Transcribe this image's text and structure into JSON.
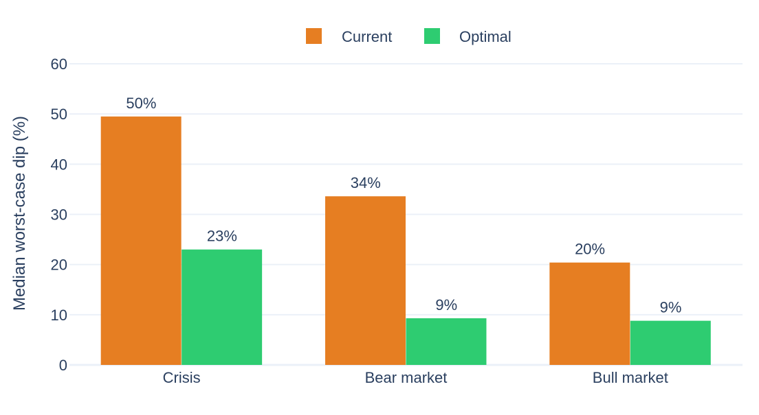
{
  "chart_data": {
    "type": "bar",
    "title": "",
    "xlabel": "",
    "ylabel": "Median worst-case dip (%)",
    "categories": [
      "Crisis",
      "Bear market",
      "Bull market"
    ],
    "series": [
      {
        "name": "Current",
        "color": "#e67e22",
        "values": [
          49.5,
          33.6,
          20.4
        ],
        "labels": [
          "50%",
          "34%",
          "20%"
        ]
      },
      {
        "name": "Optimal",
        "color": "#2ecc71",
        "values": [
          23.0,
          9.3,
          8.8
        ],
        "labels": [
          "23%",
          "9%",
          "9%"
        ]
      }
    ],
    "ylim": [
      0,
      60
    ],
    "yticks": [
      0,
      10,
      20,
      30,
      40,
      50,
      60
    ],
    "grid": true,
    "legend": "top-center"
  }
}
